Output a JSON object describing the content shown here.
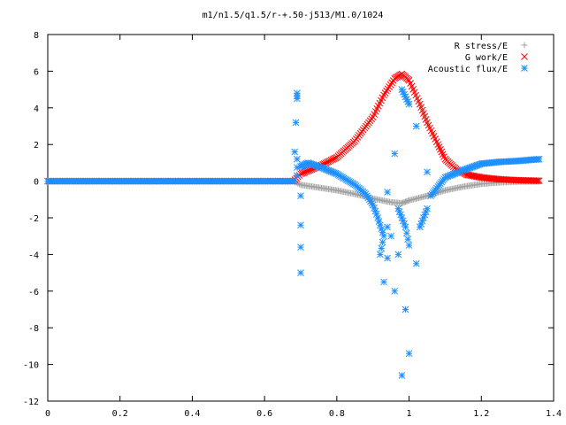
{
  "chart_data": {
    "type": "scatter",
    "title": "m1/n1.5/q1.5/r-+.50-j513/M1.0/1024",
    "xlabel": "",
    "ylabel": "",
    "xlim": [
      0,
      1.4
    ],
    "ylim": [
      -12,
      8
    ],
    "x_ticks": [
      "0",
      "0.2",
      "0.4",
      "0.6",
      "0.8",
      "1",
      "1.2",
      "1.4"
    ],
    "y_ticks": [
      "8",
      "6",
      "4",
      "2",
      "0",
      "-2",
      "-4",
      "-6",
      "-8",
      "-10",
      "-12"
    ],
    "grid": false,
    "legend_position": "top-right",
    "colors": {
      "r_stress": "#a0a0a0",
      "g_work": "#ff0000",
      "acoustic": "#1e90ff",
      "axes": "#000000"
    },
    "series": [
      {
        "name": "R stress/E",
        "marker": "+",
        "points": [
          [
            0,
            0
          ],
          [
            0.1,
            0
          ],
          [
            0.2,
            0
          ],
          [
            0.3,
            0
          ],
          [
            0.4,
            0
          ],
          [
            0.5,
            0
          ],
          [
            0.6,
            0
          ],
          [
            0.68,
            0
          ],
          [
            0.7,
            -0.2
          ],
          [
            0.75,
            -0.35
          ],
          [
            0.8,
            -0.5
          ],
          [
            0.85,
            -0.7
          ],
          [
            0.9,
            -0.95
          ],
          [
            0.95,
            -1.15
          ],
          [
            0.98,
            -1.2
          ],
          [
            1.0,
            -1.05
          ],
          [
            1.05,
            -0.8
          ],
          [
            1.1,
            -0.5
          ],
          [
            1.15,
            -0.3
          ],
          [
            1.2,
            -0.15
          ],
          [
            1.25,
            -0.07
          ],
          [
            1.3,
            -0.03
          ],
          [
            1.36,
            -0.02
          ]
        ]
      },
      {
        "name": "G work/E",
        "marker": "x",
        "points": [
          [
            0,
            0
          ],
          [
            0.1,
            0
          ],
          [
            0.2,
            0
          ],
          [
            0.3,
            0
          ],
          [
            0.4,
            0
          ],
          [
            0.5,
            0
          ],
          [
            0.6,
            0
          ],
          [
            0.68,
            0
          ],
          [
            0.7,
            0.4
          ],
          [
            0.75,
            0.8
          ],
          [
            0.8,
            1.3
          ],
          [
            0.85,
            2.2
          ],
          [
            0.9,
            3.5
          ],
          [
            0.93,
            4.7
          ],
          [
            0.96,
            5.6
          ],
          [
            0.98,
            5.85
          ],
          [
            1.0,
            5.5
          ],
          [
            1.03,
            4.2
          ],
          [
            1.05,
            3.2
          ],
          [
            1.08,
            2.0
          ],
          [
            1.1,
            1.2
          ],
          [
            1.13,
            0.65
          ],
          [
            1.16,
            0.35
          ],
          [
            1.2,
            0.2
          ],
          [
            1.25,
            0.1
          ],
          [
            1.3,
            0.05
          ],
          [
            1.36,
            0.02
          ]
        ]
      },
      {
        "name": "Acoustic flux/E",
        "marker": "*",
        "points": [
          [
            0,
            0
          ],
          [
            0.1,
            0
          ],
          [
            0.2,
            0
          ],
          [
            0.3,
            0
          ],
          [
            0.4,
            0
          ],
          [
            0.5,
            0
          ],
          [
            0.6,
            0
          ],
          [
            0.68,
            0
          ],
          [
            0.69,
            4.8
          ],
          [
            0.69,
            4.5
          ],
          [
            0.69,
            1.2
          ],
          [
            0.69,
            0.3
          ],
          [
            0.7,
            -5.0
          ],
          [
            0.7,
            -3.6
          ],
          [
            0.7,
            -2.4
          ],
          [
            0.7,
            -0.8
          ],
          [
            0.7,
            0.8
          ],
          [
            0.72,
            1.0
          ],
          [
            0.75,
            0.8
          ],
          [
            0.8,
            0.4
          ],
          [
            0.85,
            -0.2
          ],
          [
            0.88,
            -0.7
          ],
          [
            0.9,
            -1.3
          ],
          [
            0.91,
            -1.8
          ],
          [
            0.92,
            -2.4
          ],
          [
            0.93,
            -3.0
          ],
          [
            0.92,
            -4.0
          ],
          [
            0.93,
            -5.5
          ],
          [
            0.94,
            -4.2
          ],
          [
            0.94,
            -2.5
          ],
          [
            0.94,
            -0.6
          ],
          [
            0.95,
            -3.0
          ],
          [
            0.96,
            -6.0
          ],
          [
            0.97,
            -4.0
          ],
          [
            0.98,
            -10.6
          ],
          [
            0.99,
            -7.0
          ],
          [
            1.0,
            -9.4
          ],
          [
            1.0,
            -3.5
          ],
          [
            0.99,
            -2.5
          ],
          [
            0.97,
            -1.5
          ],
          [
            0.96,
            1.5
          ],
          [
            0.98,
            5.0
          ],
          [
            1.0,
            4.2
          ],
          [
            1.02,
            3.0
          ],
          [
            1.02,
            -4.5
          ],
          [
            1.03,
            -2.5
          ],
          [
            1.05,
            -1.5
          ],
          [
            1.05,
            0.5
          ],
          [
            1.06,
            -0.8
          ],
          [
            1.08,
            -0.3
          ],
          [
            1.1,
            0.2
          ],
          [
            1.15,
            0.6
          ],
          [
            1.2,
            0.95
          ],
          [
            1.25,
            1.05
          ],
          [
            1.3,
            1.1
          ],
          [
            1.36,
            1.2
          ]
        ]
      }
    ]
  }
}
